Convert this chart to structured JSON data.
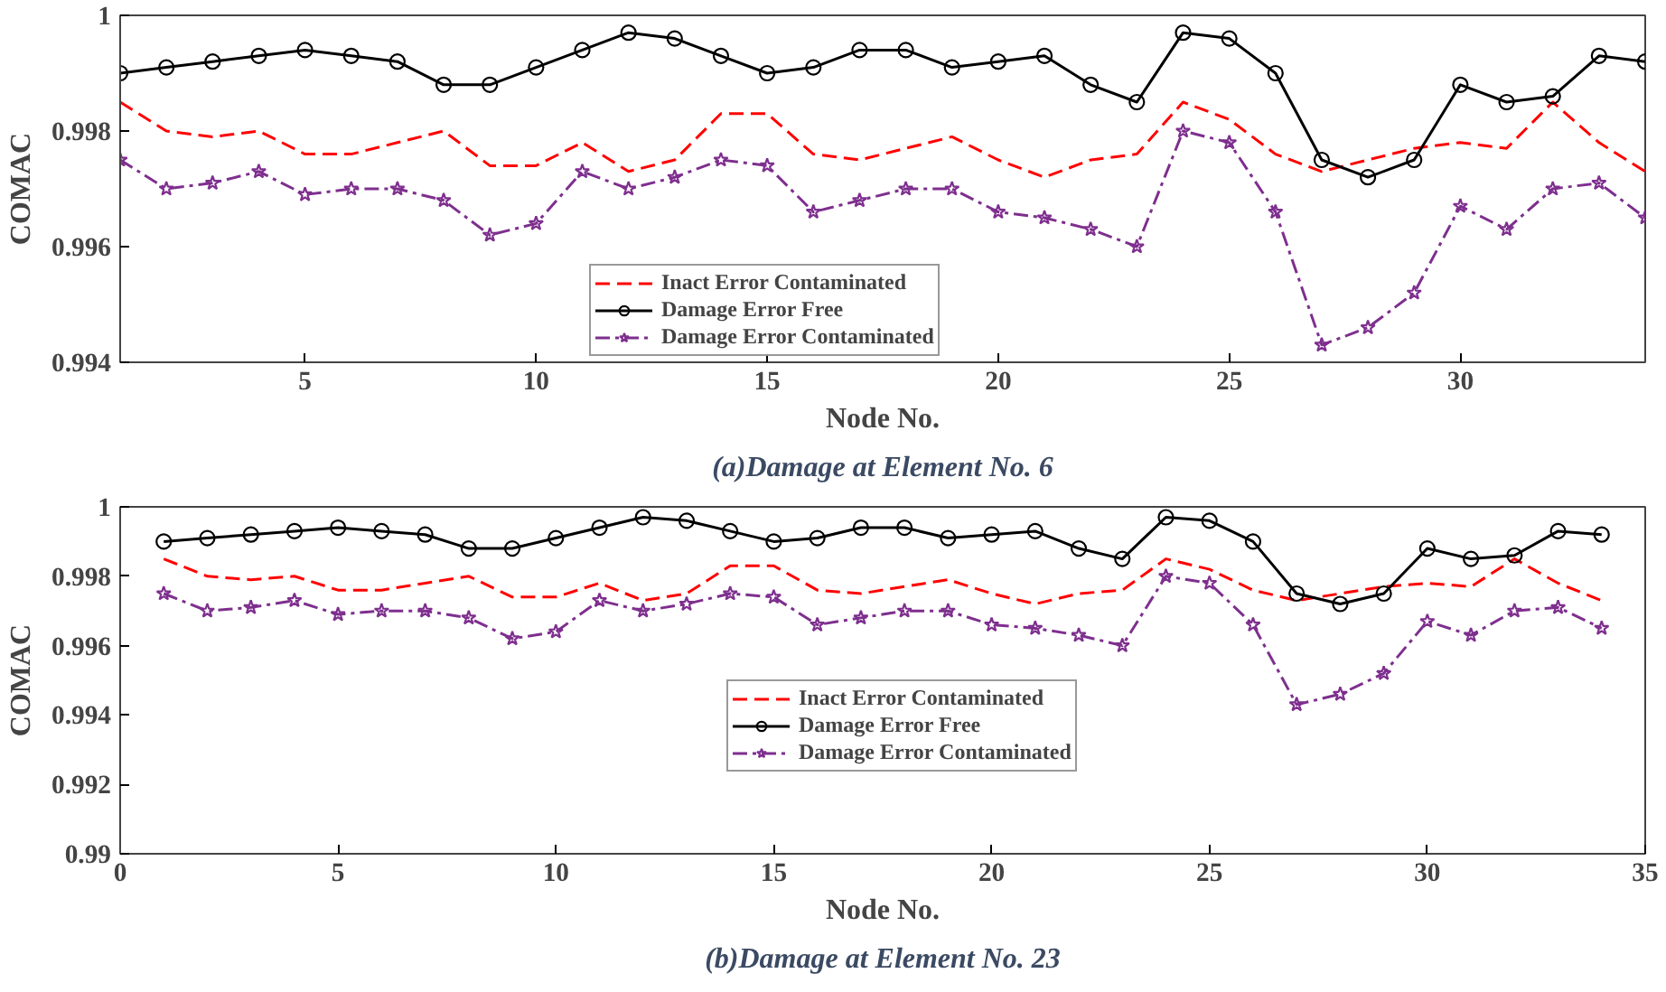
{
  "chart_data": [
    {
      "type": "line",
      "title": "(a)Damage at Element No. 6",
      "xlabel": "Node No.",
      "ylabel": "COMAC",
      "x": [
        1,
        2,
        3,
        4,
        5,
        6,
        7,
        8,
        9,
        10,
        11,
        12,
        13,
        14,
        15,
        16,
        17,
        18,
        19,
        20,
        21,
        22,
        23,
        24,
        25,
        26,
        27,
        28,
        29,
        30,
        31,
        32,
        33,
        34
      ],
      "xlim": [
        1,
        34
      ],
      "xticks": [
        5,
        10,
        15,
        20,
        25,
        30
      ],
      "ylim": [
        0.994,
        1
      ],
      "yticks": [
        0.994,
        0.996,
        0.998,
        1
      ],
      "legend": "bottom",
      "grid": false,
      "series": [
        {
          "name": "Inact Error Contaminated",
          "color": "#ff0000",
          "line_style": "dashed",
          "marker": "none",
          "values": [
            0.9985,
            0.998,
            0.9979,
            0.998,
            0.9976,
            0.9976,
            0.9978,
            0.998,
            0.9974,
            0.9974,
            0.9978,
            0.9973,
            0.9975,
            0.9983,
            0.9983,
            0.9976,
            0.9975,
            0.9977,
            0.9979,
            0.9975,
            0.9972,
            0.9975,
            0.9976,
            0.9985,
            0.9982,
            0.9976,
            0.9973,
            0.9975,
            0.9977,
            0.9978,
            0.9977,
            0.9985,
            0.9978,
            0.9973
          ]
        },
        {
          "name": "Damage Error Free",
          "color": "#000000",
          "line_style": "solid",
          "marker": "circle",
          "values": [
            0.999,
            0.9991,
            0.9992,
            0.9993,
            0.9994,
            0.9993,
            0.9992,
            0.9988,
            0.9988,
            0.9991,
            0.9994,
            0.9997,
            0.9996,
            0.9993,
            0.999,
            0.9991,
            0.9994,
            0.9994,
            0.9991,
            0.9992,
            0.9993,
            0.9988,
            0.9985,
            0.9997,
            0.9996,
            0.999,
            0.9975,
            0.9972,
            0.9975,
            0.9988,
            0.9985,
            0.9986,
            0.9993,
            0.9992
          ]
        },
        {
          "name": "Damage Error Contaminated",
          "color": "#7e2f8e",
          "line_style": "dashdot",
          "marker": "star",
          "values": [
            0.9975,
            0.997,
            0.9971,
            0.9973,
            0.9969,
            0.997,
            0.997,
            0.9968,
            0.9962,
            0.9964,
            0.9973,
            0.997,
            0.9972,
            0.9975,
            0.9974,
            0.9966,
            0.9968,
            0.997,
            0.997,
            0.9966,
            0.9965,
            0.9963,
            0.996,
            0.998,
            0.9978,
            0.9966,
            0.9943,
            0.9946,
            0.9952,
            0.9967,
            0.9963,
            0.997,
            0.9971,
            0.9965
          ]
        }
      ]
    },
    {
      "type": "line",
      "title": "(b)Damage at Element No. 23",
      "xlabel": "Node No.",
      "ylabel": "COMAC",
      "x": [
        1,
        2,
        3,
        4,
        5,
        6,
        7,
        8,
        9,
        10,
        11,
        12,
        13,
        14,
        15,
        16,
        17,
        18,
        19,
        20,
        21,
        22,
        23,
        24,
        25,
        26,
        27,
        28,
        29,
        30,
        31,
        32,
        33,
        34
      ],
      "xlim": [
        0,
        35
      ],
      "xticks": [
        0,
        5,
        10,
        15,
        20,
        25,
        30,
        35
      ],
      "ylim": [
        0.99,
        1
      ],
      "yticks": [
        0.99,
        0.992,
        0.994,
        0.996,
        0.998,
        1
      ],
      "legend": "center",
      "grid": false,
      "series": [
        {
          "name": "Inact Error Contaminated",
          "color": "#ff0000",
          "line_style": "dashed",
          "marker": "none",
          "values": [
            0.9985,
            0.998,
            0.9979,
            0.998,
            0.9976,
            0.9976,
            0.9978,
            0.998,
            0.9974,
            0.9974,
            0.9978,
            0.9973,
            0.9975,
            0.9983,
            0.9983,
            0.9976,
            0.9975,
            0.9977,
            0.9979,
            0.9975,
            0.9972,
            0.9975,
            0.9976,
            0.9985,
            0.9982,
            0.9976,
            0.9973,
            0.9975,
            0.9977,
            0.9978,
            0.9977,
            0.9985,
            0.9978,
            0.9973
          ]
        },
        {
          "name": "Damage Error Free",
          "color": "#000000",
          "line_style": "solid",
          "marker": "circle",
          "values": [
            0.999,
            0.9991,
            0.9992,
            0.9993,
            0.9994,
            0.9993,
            0.9992,
            0.9988,
            0.9988,
            0.9991,
            0.9994,
            0.9997,
            0.9996,
            0.9993,
            0.999,
            0.9991,
            0.9994,
            0.9994,
            0.9991,
            0.9992,
            0.9993,
            0.9988,
            0.9985,
            0.9997,
            0.9996,
            0.999,
            0.9975,
            0.9972,
            0.9975,
            0.9988,
            0.9985,
            0.9986,
            0.9993,
            0.9992
          ]
        },
        {
          "name": "Damage Error Contaminated",
          "color": "#7e2f8e",
          "line_style": "dashdot",
          "marker": "star",
          "values": [
            0.9975,
            0.997,
            0.9971,
            0.9973,
            0.9969,
            0.997,
            0.997,
            0.9968,
            0.9962,
            0.9964,
            0.9973,
            0.997,
            0.9972,
            0.9975,
            0.9974,
            0.9966,
            0.9968,
            0.997,
            0.997,
            0.9966,
            0.9965,
            0.9963,
            0.996,
            0.998,
            0.9978,
            0.9966,
            0.9943,
            0.9946,
            0.9952,
            0.9967,
            0.9963,
            0.997,
            0.9971,
            0.9965
          ]
        }
      ]
    }
  ]
}
